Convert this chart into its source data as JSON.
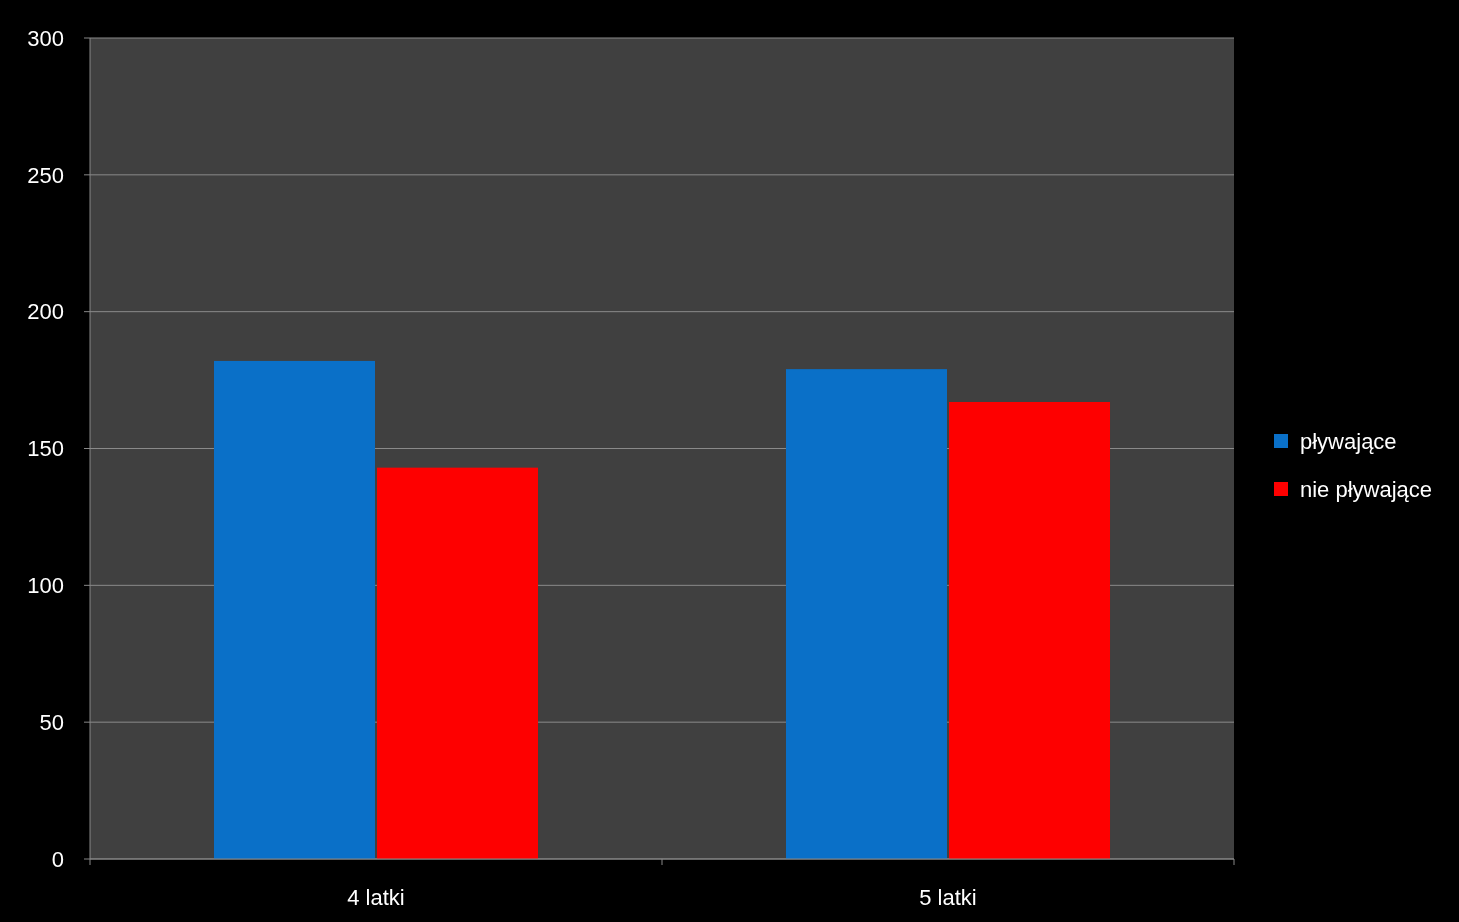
{
  "chart_data": {
    "type": "bar",
    "categories": [
      "4 latki",
      "5 latki"
    ],
    "series": [
      {
        "name": "pływające",
        "color": "#0a70c8",
        "values": [
          182,
          179
        ]
      },
      {
        "name": "nie pływające",
        "color": "#fe0000",
        "values": [
          143,
          167
        ]
      }
    ],
    "ylim": [
      0,
      300
    ],
    "yticks": [
      0,
      50,
      100,
      150,
      200,
      250,
      300
    ],
    "grid": "y",
    "legend": "right"
  }
}
